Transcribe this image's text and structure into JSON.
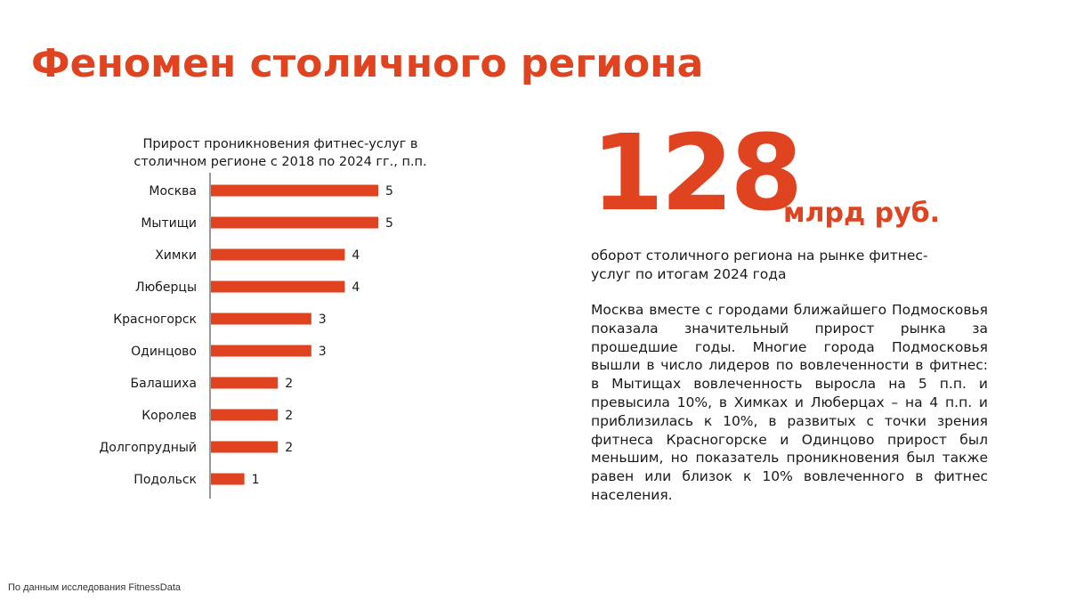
{
  "slide": {
    "title": "Феномен столичного региона",
    "big_number": "128",
    "big_unit": "млрд руб.",
    "subtitle": "оборот столичного региона на рынке фитнес-услуг по итогам 2024 года",
    "body": "Москва вместе с городами ближайшего Подмосковья показала значительный прирост рынка за прошедшие годы. Многие города Подмосковья вышли в число лидеров по вовлеченности в фитнес: в Мытищах вовлеченность выросла на 5 п.п. и превысила 10%, в Химках и Люберцах – на 4 п.п. и приблизилась к 10%, в развитых с точки зрения фитнеса Красногорске и Одинцово прирост был меньшим, но показатель проникновения был также равен или близок к 10% вовлеченного в фитнес населения.",
    "footer": "По данным исследования FitnessData"
  },
  "colors": {
    "accent": "#e0431f",
    "text": "#1a1a1a",
    "axis": "#333333"
  },
  "chart_data": {
    "type": "bar",
    "orientation": "horizontal",
    "title": "Прирост проникновения фитнес-услуг в столичном регионе с 2018 по 2024 гг., п.п.",
    "categories": [
      "Москва",
      "Мытищи",
      "Химки",
      "Люберцы",
      "Красногорск",
      "Одинцово",
      "Балашиха",
      "Королев",
      "Долгопрудный",
      "Подольск"
    ],
    "values": [
      5,
      5,
      4,
      4,
      3,
      3,
      2,
      2,
      2,
      1
    ],
    "xlim": [
      0,
      5
    ],
    "data_labels": true,
    "grid": false,
    "color": "#e0431f"
  }
}
